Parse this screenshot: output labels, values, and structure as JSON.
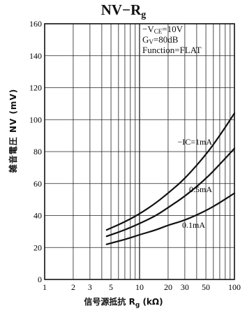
{
  "title": {
    "main": "NV−R",
    "sub": "g"
  },
  "conditions": {
    "vce_prefix": "−V",
    "vce_sub": "CE",
    "vce_value": "=10V",
    "gv_prefix": "G",
    "gv_sub": "V",
    "gv_value": "=80dB",
    "function": "Function=FLAT"
  },
  "axes": {
    "ylabel": "雑音電圧  NV  (mV)",
    "xlabel_prefix": "信号源抵抗  R",
    "xlabel_sub": "g",
    "xlabel_suffix": "  (kΩ)"
  },
  "chart_data": {
    "type": "line",
    "title": "NV−Rg",
    "xlabel": "信号源抵抗 Rg (kΩ)",
    "ylabel": "雑音電圧 NV (mV)",
    "xscale": "log",
    "xlim": [
      1,
      100
    ],
    "ylim": [
      0,
      160
    ],
    "grid": true,
    "x_ticks": [
      1,
      2,
      3,
      5,
      10,
      20,
      30,
      50,
      100
    ],
    "x_tick_labels": [
      "1",
      "2",
      "3",
      "5",
      "10",
      "20",
      "30",
      "50",
      "100"
    ],
    "y_ticks": [
      0,
      20,
      40,
      60,
      80,
      100,
      120,
      140,
      160
    ],
    "y_tick_labels": [
      "0",
      "20",
      "40",
      "60",
      "80",
      "100",
      "120",
      "140",
      "160"
    ],
    "series": [
      {
        "name": "−I_C=1mA",
        "label": "−IC=1mA",
        "x": [
          4.5,
          7,
          10,
          15,
          20,
          30,
          50,
          70,
          100
        ],
        "y": [
          31,
          36,
          41,
          48,
          54,
          63,
          78,
          90,
          104
        ]
      },
      {
        "name": "0.5mA",
        "label": "0.5mA",
        "x": [
          4.5,
          7,
          10,
          15,
          20,
          30,
          50,
          70,
          100
        ],
        "y": [
          27,
          31,
          35,
          40,
          45,
          52,
          63,
          72,
          82
        ]
      },
      {
        "name": "0.1mA",
        "label": "0.1mA",
        "x": [
          4.5,
          7,
          10,
          15,
          20,
          30,
          50,
          70,
          100
        ],
        "y": [
          22,
          25,
          28,
          31,
          34,
          37,
          43,
          48,
          54
        ]
      }
    ]
  }
}
